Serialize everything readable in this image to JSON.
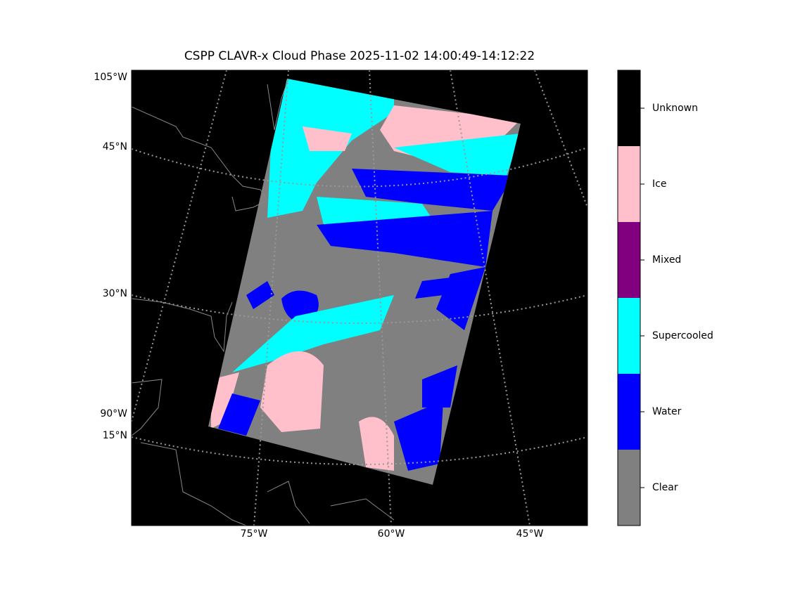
{
  "title": "CSPP CLAVR-x Cloud Phase 2025-11-02 14:00:49-14:12:22",
  "map": {
    "left_labels": [
      "105°W",
      "45°N",
      "30°N",
      "90°W",
      "15°N"
    ],
    "bottom_labels": [
      "75°W",
      "60°W",
      "45°W"
    ]
  },
  "colorbar": {
    "classes": [
      {
        "label": "Unknown",
        "color": "#000000"
      },
      {
        "label": "Ice",
        "color": "#ffc0cb"
      },
      {
        "label": "Mixed",
        "color": "#800080"
      },
      {
        "label": "Supercooled",
        "color": "#00ffff"
      },
      {
        "label": "Water",
        "color": "#0000ff"
      },
      {
        "label": "Clear",
        "color": "#808080"
      }
    ]
  }
}
